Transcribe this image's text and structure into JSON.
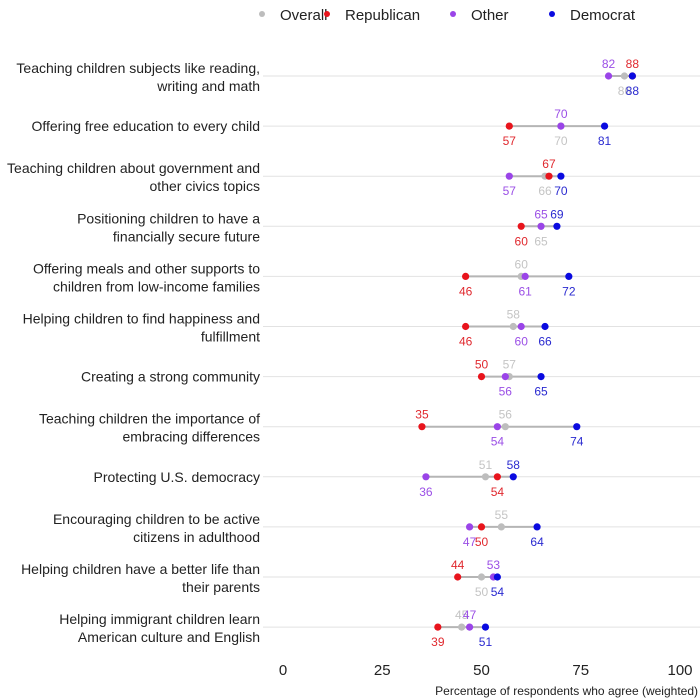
{
  "chart_data": {
    "type": "scatter",
    "subtype": "dot-plot",
    "title": "",
    "xlabel": "Percentage of respondents who agree (weighted)",
    "ylabel": "",
    "xlim": [
      0,
      100
    ],
    "xticks": [
      0,
      25,
      50,
      75,
      100
    ],
    "xtick_labels": [
      "0",
      "25",
      "50",
      "75",
      "100"
    ],
    "grid": "horizontal-per-category",
    "legend": {
      "placement": "top-center",
      "entries": [
        {
          "name": "Overall",
          "color": "#bdbdbd"
        },
        {
          "name": "Republican",
          "color": "#e8141c"
        },
        {
          "name": "Other",
          "color": "#9a44e8"
        },
        {
          "name": "Democrat",
          "color": "#0a0ae0"
        }
      ]
    },
    "label_colors": {
      "Overall": "#c4c4c4",
      "Republican": "#e0282e",
      "Other": "#9b4fe6",
      "Democrat": "#2a2ad0"
    },
    "categories": [
      [
        "Teaching children subjects like reading,",
        "writing and math"
      ],
      [
        "Offering free education to every child"
      ],
      [
        "Teaching children about government and",
        "other civics topics"
      ],
      [
        "Positioning children to have a",
        "financially secure future"
      ],
      [
        "Offering meals and other supports to",
        "children from low-income families"
      ],
      [
        "Helping children to find happiness and",
        "fulfillment"
      ],
      [
        "Creating a strong community"
      ],
      [
        "Teaching children the importance of",
        "embracing differences"
      ],
      [
        "Protecting U.S. democracy"
      ],
      [
        "Encouraging children to be active",
        "citizens in adulthood"
      ],
      [
        "Helping children have a better life than",
        "their parents"
      ],
      [
        "Helping immigrant children learn",
        "American culture and English"
      ]
    ],
    "series": [
      {
        "name": "Overall",
        "values": [
          86,
          70,
          66,
          65,
          60,
          58,
          57,
          56,
          51,
          55,
          50,
          45
        ],
        "label_pos": [
          "below",
          "below",
          "below",
          "below",
          "above",
          "above",
          "above",
          "above",
          "above",
          "above",
          "below",
          "above"
        ]
      },
      {
        "name": "Republican",
        "values": [
          88,
          57,
          67,
          60,
          46,
          46,
          50,
          35,
          54,
          50,
          44,
          39
        ],
        "label_pos": [
          "above",
          "below",
          "above",
          "below",
          "below",
          "below",
          "above",
          "above",
          "below",
          "below",
          "above",
          "below"
        ]
      },
      {
        "name": "Other",
        "values": [
          82,
          70,
          57,
          65,
          61,
          60,
          56,
          54,
          36,
          47,
          53,
          47
        ],
        "label_pos": [
          "above",
          "above",
          "below",
          "above",
          "below",
          "below",
          "below",
          "below",
          "below",
          "below",
          "above",
          "above"
        ]
      },
      {
        "name": "Democrat",
        "values": [
          88,
          81,
          70,
          69,
          72,
          66,
          65,
          74,
          58,
          64,
          54,
          51
        ],
        "label_pos": [
          "below",
          "below",
          "below",
          "above",
          "below",
          "below",
          "below",
          "below",
          "above",
          "below",
          "below",
          "below"
        ]
      }
    ]
  }
}
